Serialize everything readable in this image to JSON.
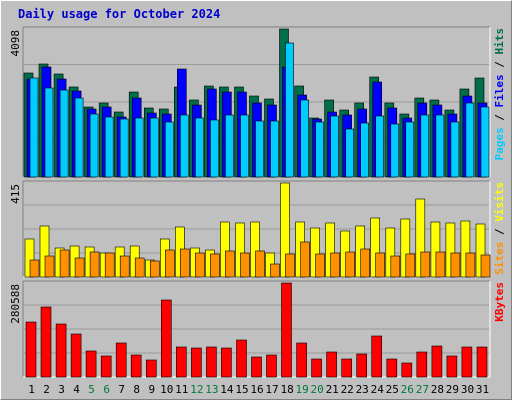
{
  "chart_data": [
    {
      "type": "bar",
      "title": "Daily usage for October 2024",
      "categories": [
        "1",
        "2",
        "3",
        "4",
        "5",
        "6",
        "7",
        "8",
        "9",
        "10",
        "11",
        "12",
        "13",
        "14",
        "15",
        "16",
        "17",
        "18",
        "19",
        "20",
        "21",
        "22",
        "23",
        "24",
        "25",
        "26",
        "27",
        "28",
        "29",
        "30",
        "31"
      ],
      "weekend_days": [
        "5",
        "6",
        "12",
        "13",
        "19",
        "20",
        "26",
        "27"
      ],
      "ymax_label": "4098",
      "ylim": [
        0,
        4098
      ],
      "right_label": [
        "Pages",
        "Files",
        "Hits"
      ],
      "series": [
        {
          "name": "Hits",
          "color": "#006e4a",
          "values": [
            2890,
            3120,
            2850,
            2490,
            1950,
            2060,
            1790,
            2350,
            1900,
            1870,
            2500,
            2120,
            2520,
            2480,
            2490,
            2240,
            2160,
            4090,
            2520,
            1640,
            2130,
            1860,
            2040,
            2780,
            2060,
            1740,
            2200,
            2120,
            1850,
            2440,
            2730
          ]
        },
        {
          "name": "Files",
          "color": "#0000ff",
          "values": [
            2720,
            3050,
            2700,
            2390,
            1880,
            1940,
            1660,
            2200,
            1780,
            1740,
            3000,
            2000,
            2430,
            2340,
            2350,
            2050,
            2000,
            3050,
            2280,
            1600,
            1800,
            1730,
            1870,
            2640,
            1900,
            1640,
            2060,
            2000,
            1740,
            2240,
            2040
          ]
        },
        {
          "name": "Pages",
          "color": "#00ccff",
          "values": [
            2740,
            2470,
            2420,
            2190,
            1740,
            1650,
            1600,
            1620,
            1640,
            1520,
            1730,
            1640,
            1570,
            1720,
            1710,
            1560,
            1560,
            3700,
            2130,
            1520,
            1680,
            1320,
            1500,
            1690,
            1470,
            1510,
            1720,
            1720,
            1510,
            2040,
            1950
          ]
        }
      ]
    },
    {
      "type": "bar",
      "ymax_label": "415",
      "ylim": [
        0,
        415
      ],
      "right_label": [
        "Sites",
        "Visits"
      ],
      "series": [
        {
          "name": "Visits",
          "color": "#ffff00",
          "values": [
            169,
            225,
            129,
            135,
            132,
            108,
            134,
            135,
            77,
            169,
            222,
            127,
            118,
            242,
            239,
            242,
            107,
            415,
            243,
            215,
            238,
            202,
            223,
            262,
            218,
            255,
            344,
            241,
            240,
            248,
            232
          ]
        },
        {
          "name": "Sites",
          "color": "#ff9000",
          "values": [
            77,
            94,
            117,
            85,
            111,
            105,
            94,
            85,
            71,
            117,
            123,
            106,
            101,
            113,
            108,
            115,
            59,
            102,
            155,
            101,
            106,
            111,
            122,
            108,
            92,
            103,
            109,
            111,
            105,
            104,
            99
          ]
        }
      ]
    },
    {
      "type": "bar",
      "ymax_label": "280588",
      "ylim": [
        0,
        280588
      ],
      "right_label": [
        "KBytes"
      ],
      "series": [
        {
          "name": "KBytes",
          "color": "#ff0000",
          "values": [
            165000,
            208000,
            157000,
            128000,
            78000,
            64000,
            100000,
            66000,
            52000,
            231000,
            91000,
            86000,
            89000,
            87000,
            110000,
            60000,
            66000,
            282000,
            100000,
            55000,
            75000,
            53000,
            69000,
            122000,
            53000,
            41000,
            75000,
            93000,
            62000,
            89000,
            91000
          ]
        }
      ]
    }
  ]
}
